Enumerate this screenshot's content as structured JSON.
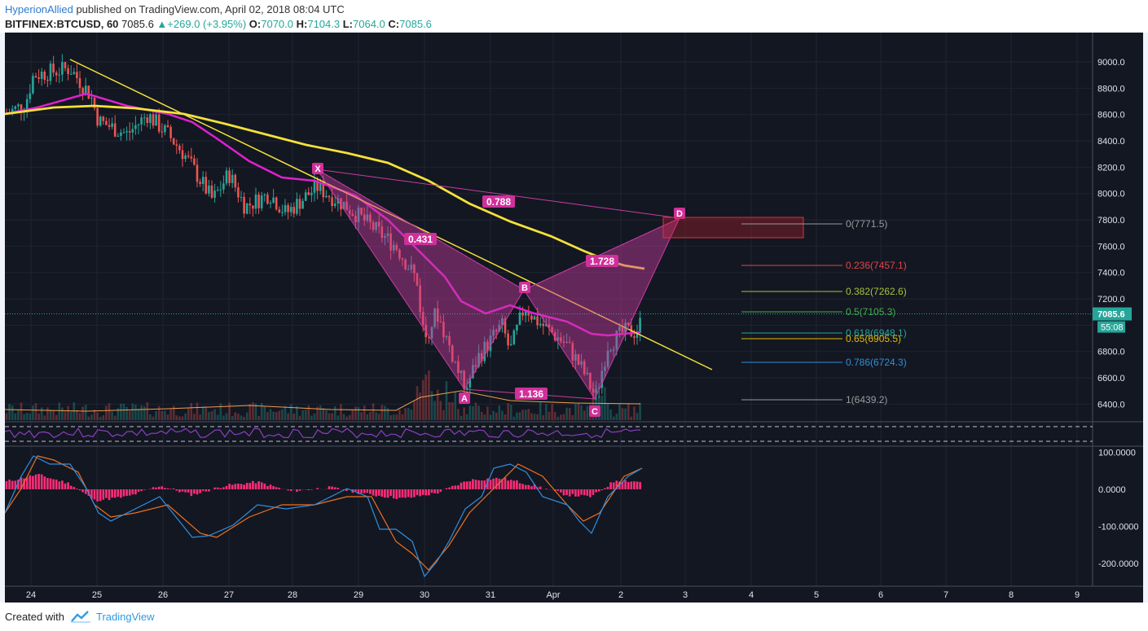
{
  "header": {
    "author": "HyperionAllied",
    "published": "published on TradingView.com, April 02, 2018 08:04 UTC",
    "symbol": "BITFINEX:BTCUSD, 60",
    "last": "7085.6",
    "change": "+269.0 (+3.95%)",
    "o_label": "O:",
    "o": "7070.0",
    "h_label": "H:",
    "h": "7104.3",
    "l_label": "L:",
    "l": "7064.0",
    "c_label": "C:",
    "c": "7085.6"
  },
  "price_axis": [
    "9000.0",
    "8800.0",
    "8600.0",
    "8400.0",
    "8200.0",
    "8000.0",
    "7800.0",
    "7600.0",
    "7400.0",
    "7200.0",
    "7000.0",
    "6800.0",
    "6600.0",
    "6400.0"
  ],
  "price_tag": "7085.6",
  "time_tag": "55:08",
  "macd_axis": [
    "100.0000",
    "0.0000",
    "-100.0000",
    "-200.0000"
  ],
  "time_axis": [
    "24",
    "25",
    "26",
    "27",
    "28",
    "29",
    "30",
    "31",
    "Apr",
    "2",
    "3",
    "4",
    "5",
    "6",
    "7",
    "8",
    "9"
  ],
  "fib_levels": [
    {
      "label": "0(7771.5)",
      "color": "#9a9a9a"
    },
    {
      "label": "0.236(7457.1)",
      "color": "#e04646"
    },
    {
      "label": "0.382(7262.6)",
      "color": "#a3c43c"
    },
    {
      "label": "0.5(7105.3)",
      "color": "#3fb24a"
    },
    {
      "label": "0.618(6948.1)",
      "color": "#26a69a"
    },
    {
      "label": "0.65(6905.5)",
      "color": "#e6b800"
    },
    {
      "label": "0.786(6724.3)",
      "color": "#2f8fd8"
    },
    {
      "label": "1(6439.2)",
      "color": "#9a9a9a"
    }
  ],
  "pattern_points": [
    "X",
    "A",
    "B",
    "C",
    "D"
  ],
  "pattern_ratios": [
    "0.788",
    "0.431",
    "1.728",
    "1.136"
  ],
  "footer": {
    "created_with": "Created with",
    "brand": "TradingView"
  },
  "colors": {
    "background": "#131722",
    "bull": "#26a69a",
    "bear": "#ef5350",
    "ma_fast": "#e020d0",
    "ma_slow": "#f5e13a",
    "pattern": "#c83ca0",
    "histogram": "#ff2d78"
  }
}
